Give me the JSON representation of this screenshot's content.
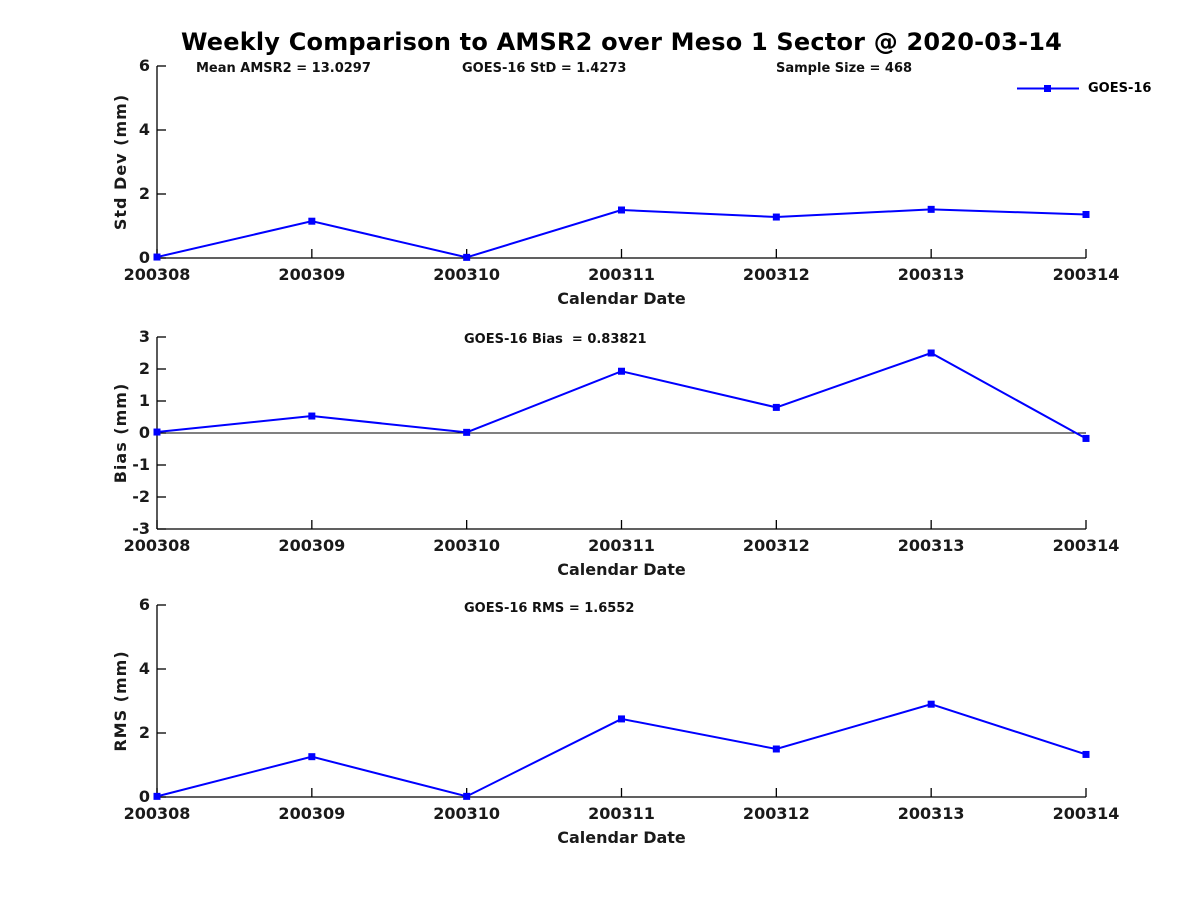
{
  "title": "Weekly Comparison to AMSR2 over Meso 1 Sector @ 2020-03-14",
  "legend": {
    "label": "GOES-16",
    "color": "#0000FF",
    "position": "top-right",
    "marker": "filled-square"
  },
  "chart_data": [
    {
      "type": "line",
      "name": "std-dev-subplot",
      "categories": [
        "200308",
        "200309",
        "200310",
        "200311",
        "200312",
        "200313",
        "200314"
      ],
      "series": [
        {
          "name": "GOES-16",
          "color": "#0000FF",
          "values": [
            0.03,
            1.15,
            0.02,
            1.5,
            1.28,
            1.52,
            1.36
          ]
        }
      ],
      "annotations": [
        "Mean AMSR2 = 13.0297",
        "GOES-16 StD = 1.4273",
        "Sample Size = 468"
      ],
      "xlabel": "Calendar Date",
      "ylabel": "Std Dev (mm)",
      "ylim": [
        0,
        6
      ],
      "yticks": [
        0,
        2,
        4,
        6
      ],
      "yticklabels": [
        "6",
        "4",
        "2",
        "0"
      ],
      "grid": false,
      "legend_entry": "GOES-16"
    },
    {
      "type": "line",
      "name": "bias-subplot",
      "title": "GOES-16 Bias  = 0.83821",
      "categories": [
        "200308",
        "200309",
        "200310",
        "200311",
        "200312",
        "200313",
        "200314"
      ],
      "series": [
        {
          "name": "GOES-16",
          "color": "#0000FF",
          "values": [
            0.03,
            0.53,
            0.02,
            1.93,
            0.8,
            2.5,
            -0.17
          ]
        }
      ],
      "xlabel": "Calendar Date",
      "ylabel": "Bias (mm)",
      "ylim": [
        -3,
        3
      ],
      "yticks": [
        -3,
        -2,
        -1,
        0,
        1,
        2,
        3
      ],
      "yticklabels": [
        "3",
        "2",
        "1",
        "0",
        "-1",
        "-2",
        "-3"
      ],
      "zero_line": true,
      "grid": false
    },
    {
      "type": "line",
      "name": "rms-subplot",
      "title": "GOES-16 RMS = 1.6552",
      "categories": [
        "200308",
        "200309",
        "200310",
        "200311",
        "200312",
        "200313",
        "200314"
      ],
      "series": [
        {
          "name": "GOES-16",
          "color": "#0000FF",
          "values": [
            0.02,
            1.26,
            0.02,
            2.44,
            1.5,
            2.9,
            1.33
          ]
        }
      ],
      "xlabel": "Calendar Date",
      "ylabel": "RMS (mm)",
      "ylim": [
        0,
        6
      ],
      "yticks": [
        0,
        2,
        4,
        6
      ],
      "yticklabels": [
        "6",
        "4",
        "2",
        "0"
      ],
      "grid": false
    }
  ]
}
